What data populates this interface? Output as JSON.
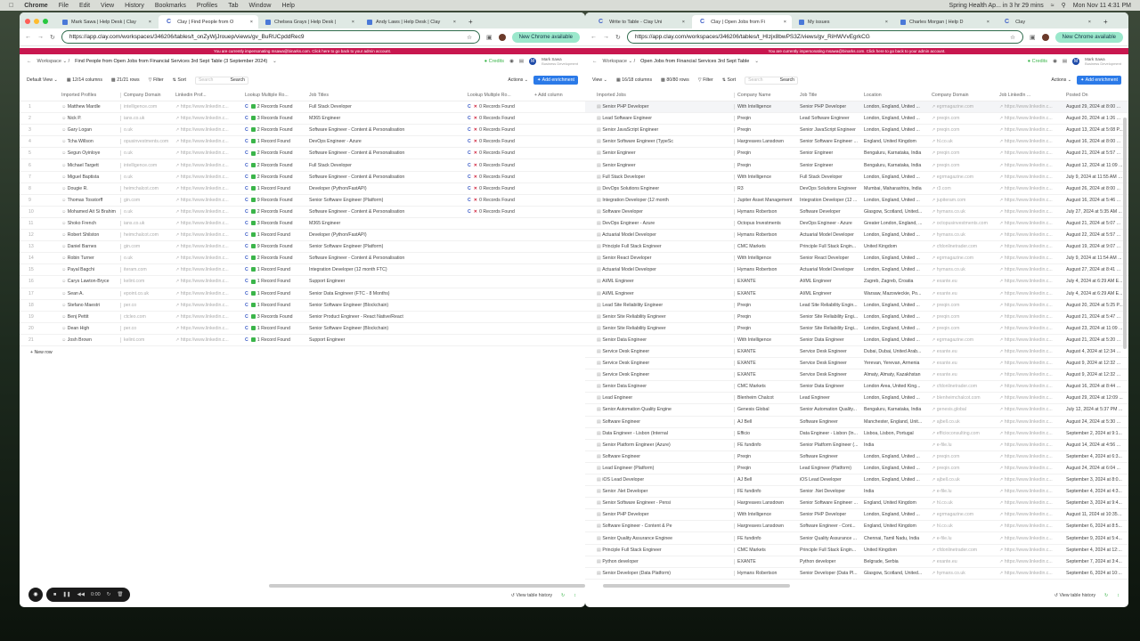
{
  "menubar": {
    "app": "Chrome",
    "items": [
      "File",
      "Edit",
      "View",
      "History",
      "Bookmarks",
      "Profiles",
      "Tab",
      "Window",
      "Help"
    ],
    "event": "Spring Health Ap... in 3 hr 29 mins",
    "clock": "Mon Nov 11 4:31 PM"
  },
  "common": {
    "banner": "You are currently impersonating msawa@binarks.com. Click here to go back to your admin account.",
    "workspace": "Workspace",
    "credits": "Credits",
    "user_name": "Mark Sawa",
    "user_role": "Business Development",
    "avatar": "M",
    "new_chrome": "New Chrome available",
    "search_placeholder": "Search",
    "search_btn": "Search",
    "filter": "Filter",
    "sort": "Sort",
    "actions": "Actions",
    "add_enrichment": "Add enrichment",
    "view_history": "View table history",
    "new_row": "+ New row",
    "rec_time": "0:00"
  },
  "left": {
    "tabs": [
      "Mark Sawa | Help Desk | Clay",
      "Clay | Find People from O",
      "Chelsea Grays | Help Desk |",
      "Andy Laws | Help Desk | Clay"
    ],
    "url": "https://app.clay.com/workspaces/346206/tables/t_onZyWjJrouep/views/gv_BuRUCpddRec9",
    "table_title": "Find People from Open Jobs from Financial Services 3rd Sept Table (3 September 2024)",
    "view": "Default View",
    "columns": "12/14 columns",
    "rows_count": "21/21 rows",
    "headers": [
      "Imported Profiles",
      "Company Domain",
      "Linkedin Prof...",
      "Lookup Multiple Ro...",
      "Job Titles",
      "Lookup Multiple Ro...",
      "+ Add column"
    ],
    "rows": [
      [
        "Matthew Mardle",
        "intelligence.com",
        "https://www.linkedin.c...",
        "2 Records Found",
        "Full Stack Developer",
        "0 Records Found"
      ],
      [
        "Nick P.",
        "ians.co.uk",
        "https://www.linkedin.c...",
        "3 Records Found",
        "M365 Engineer",
        "0 Records Found"
      ],
      [
        "Gary Logan",
        "o.uk",
        "https://www.linkedin.c...",
        "2 Records Found",
        "Software Engineer - Content & Personalisation",
        "0 Records Found"
      ],
      [
        "Tcha Willson",
        "opusinvestments.com",
        "https://www.linkedin.c...",
        "1 Record Found",
        "DevOps Engineer - Azure",
        "0 Records Found"
      ],
      [
        "Segun Oyinloye",
        "o.uk",
        "https://www.linkedin.c...",
        "2 Records Found",
        "Software Engineer - Content & Personalisation",
        "0 Records Found"
      ],
      [
        "Michael Targett",
        "intelligence.com",
        "https://www.linkedin.c...",
        "2 Records Found",
        "Full Stack Developer",
        "0 Records Found"
      ],
      [
        "Miguel Baptista",
        "o.uk",
        "https://www.linkedin.c...",
        "2 Records Found",
        "Software Engineer - Content & Personalisation",
        "0 Records Found"
      ],
      [
        "Dougie R.",
        "heimchalcot.com",
        "https://www.linkedin.c...",
        "1 Record Found",
        "Developer (Python/FastAPI)",
        "0 Records Found"
      ],
      [
        "Thomas Tosstorff",
        "gin.com",
        "https://www.linkedin.c...",
        "9 Records Found",
        "Senior Software Engineer (Platform)",
        "0 Records Found"
      ],
      [
        "Mohamed Ait Si Brahim",
        "o.uk",
        "https://www.linkedin.c...",
        "2 Records Found",
        "Software Engineer - Content & Personalisation",
        "0 Records Found"
      ],
      [
        "Shoko French",
        "ians.co.uk",
        "https://www.linkedin.c...",
        "3 Records Found",
        "M365 Engineer",
        ""
      ],
      [
        "Robert Shilston",
        "heimchalcot.com",
        "https://www.linkedin.c...",
        "1 Record Found",
        "Developer (Python/FastAPI)",
        ""
      ],
      [
        "Daniel Barnes",
        "gin.com",
        "https://www.linkedin.c...",
        "9 Records Found",
        "Senior Software Engineer (Platform)",
        ""
      ],
      [
        "Robin Turner",
        "o.uk",
        "https://www.linkedin.c...",
        "2 Records Found",
        "Software Engineer - Content & Personalisation",
        ""
      ],
      [
        "Payal Bagchi",
        "iteram.com",
        "https://www.linkedin.c...",
        "1 Record Found",
        "Integration Developer (12 month FTC)",
        ""
      ],
      [
        "Carys Lawton-Bryce",
        "kelint.com",
        "https://www.linkedin.c...",
        "1 Record Found",
        "Support Engineer",
        ""
      ],
      [
        "Sean A.",
        "epoint.co.uk",
        "https://www.linkedin.c...",
        "1 Record Found",
        "Senior Data Engineer (FTC - 8 Months)",
        ""
      ],
      [
        "Stefano Maestri",
        "per.co",
        "https://www.linkedin.c...",
        "1 Record Found",
        "Senior Software Engineer (Blockchain)",
        ""
      ],
      [
        "Benj Pettit",
        "ctcleo.com",
        "https://www.linkedin.c...",
        "3 Records Found",
        "Senior Product Engineer - React Native/React",
        ""
      ],
      [
        "Dean High",
        "per.co",
        "https://www.linkedin.c...",
        "1 Record Found",
        "Senior Software Engineer (Blockchain)",
        ""
      ],
      [
        "Josh Brown",
        "kelint.com",
        "https://www.linkedin.c...",
        "1 Record Found",
        "Support Engineer",
        ""
      ]
    ]
  },
  "right": {
    "tabs": [
      "Write to Table - Clay Uni",
      "Clay | Open Jobs from Fi",
      "My issues",
      "Charles Morgan | Help D",
      "Clay"
    ],
    "url": "https://app.clay.com/workspaces/346206/tables/t_HIzjx8bwPS3Z/views/gv_RiHWVvEgrkCG",
    "table_title": "Open Jobs from Financial Services 3rd Sept Table",
    "view": "View",
    "columns": "16/18 columns",
    "rows_count": "80/80 rows",
    "headers": [
      "Imported Jobs",
      "Company Name",
      "Job Title",
      "Location",
      "Company Domain",
      "Job LinkedIn ...",
      "Posted On"
    ],
    "rows": [
      [
        "Senior PHP Developer",
        "With Intelligence",
        "Senior PHP Developer",
        "London, England, United ...",
        "egrmagazine.com",
        "August 29, 2024 at 8:00 AM"
      ],
      [
        "Lead Software Engineer",
        "Preqin",
        "Lead Software Engineer",
        "London, England, United ...",
        "preqin.com",
        "August 20, 2024 at 1:26 A..."
      ],
      [
        "Senior JavaScript Engineer",
        "Preqin",
        "Senior JavaScript Engineer",
        "London, England, United ...",
        "preqin.com",
        "August 13, 2024 at 5:08 P..."
      ],
      [
        "Senior Software Engineer (TypeSc",
        "Hargreaves Lansdown",
        "Senior Software Engineer ...",
        "England, United Kingdom",
        "hl.co.uk",
        "August 16, 2024 at 8:00 A..."
      ],
      [
        "Senior Engineer",
        "Preqin",
        "Senior Engineer",
        "Bengaluru, Karnataka, India",
        "preqin.com",
        "August 21, 2024 at 5:57 A..."
      ],
      [
        "Senior Engineer",
        "Preqin",
        "Senior Engineer",
        "Bengaluru, Karnataka, India",
        "preqin.com",
        "August 12, 2024 at 11:09 ..."
      ],
      [
        "Full Stack Developer",
        "With Intelligence",
        "Full Stack Developer",
        "London, England, United ...",
        "egrmagazine.com",
        "July 9, 2024 at 11:55 AM E..."
      ],
      [
        "DevOps Solutions Engineer",
        "R3",
        "DevOps Solutions Engineer",
        "Mumbai, Maharashtra, India",
        "r3.com",
        "August 26, 2024 at 8:00 ..."
      ],
      [
        "Integration Developer (12 month",
        "Jupiter Asset Management",
        "Integration Developer (12 ...",
        "London, England, United ...",
        "jupiteram.com",
        "August 16, 2024 at 5:46 A..."
      ],
      [
        "Software Developer",
        "Hymans Robertson",
        "Software Developer",
        "Glasgow, Scotland, United...",
        "hymans.co.uk",
        "July 27, 2024 at 5:35 AM ..."
      ],
      [
        "DevOps Engineer - Azure",
        "Octopus Investments",
        "DevOps Engineer - Azure",
        "Greater London, England, ...",
        "octopusinvestments.com",
        "August 21, 2024 at 5:07 A..."
      ],
      [
        "Actuarial Model Developer",
        "Hymans Robertson",
        "Actuarial Model Developer",
        "London, England, United ...",
        "hymans.co.uk",
        "August 22, 2024 at 5:57 A..."
      ],
      [
        "Principle Full Stack Engineer",
        "CMC Markets",
        "Principle Full Stack Engin...",
        "United Kingdom",
        "cfdonlinetrader.com",
        "August 19, 2024 at 9:07 A..."
      ],
      [
        "Senior React Developer",
        "With Intelligence",
        "Senior React Developer",
        "London, England, United ...",
        "egrmagazine.com",
        "July 9, 2024 at 11:54 AM ..."
      ],
      [
        "Actuarial Model Developer",
        "Hymans Robertson",
        "Actuarial Model Developer",
        "London, England, United ...",
        "hymans.co.uk",
        "August 27, 2024 at 8:41 A..."
      ],
      [
        "AI/ML Engineer",
        "EXANTE",
        "AI/ML Engineer",
        "Zagreb, Zagreb, Croatia",
        "exante.eu",
        "July 4, 2024 at 6:29 AM E..."
      ],
      [
        "AI/ML Engineer",
        "EXANTE",
        "AI/ML Engineer",
        "Warsaw, Mazowieckie, Po...",
        "exante.eu",
        "July 4, 2024 at 6:29 AM E..."
      ],
      [
        "Lead Site Reliability Engineer",
        "Preqin",
        "Lead Site Reliability Engin...",
        "London, England, United ...",
        "preqin.com",
        "August 20, 2024 at 5:25 P..."
      ],
      [
        "Senior Site Reliability Engineer",
        "Preqin",
        "Senior Site Reliability Engi...",
        "London, England, United ...",
        "preqin.com",
        "August 21, 2024 at 5:47 A..."
      ],
      [
        "Senior Site Reliability Engineer",
        "Preqin",
        "Senior Site Reliability Engi...",
        "London, England, United ...",
        "preqin.com",
        "August 23, 2024 at 11:09 ..."
      ],
      [
        "Senior Data Engineer",
        "With Intelligence",
        "Senior Data Engineer",
        "London, England, United ...",
        "egrmagazine.com",
        "August 21, 2024 at 5:20 A..."
      ],
      [
        "Service Desk Engineer",
        "EXANTE",
        "Service Desk Engineer",
        "Dubai, Dubai, United Arab...",
        "exante.eu",
        "August 4, 2024 at 12:34 A..."
      ],
      [
        "Service Desk Engineer",
        "EXANTE",
        "Service Desk Engineer",
        "Yerevan, Yerevan, Armenia",
        "exante.eu",
        "August 9, 2024 at 12:32 A..."
      ],
      [
        "Service Desk Engineer",
        "EXANTE",
        "Service Desk Engineer",
        "Almaty, Almaty, Kazakhstan",
        "exante.eu",
        "August 9, 2024 at 12:32 A..."
      ],
      [
        "Senior Data Engineer",
        "CMC Markets",
        "Senior Data Engineer",
        "London Area, United King...",
        "cfdonlinetrader.com",
        "August 16, 2024 at 8:44 A..."
      ],
      [
        "Lead Engineer",
        "Blenheim Chalcot",
        "Lead Engineer",
        "London, England, United ...",
        "blenheimchalcot.com",
        "August 29, 2024 at 12:09 ..."
      ],
      [
        "Senior Automation Quality Engine",
        "Genesis Global",
        "Senior Automation Quality...",
        "Bengaluru, Karnataka, India",
        "genesis.global",
        "July 12, 2024 at 5:37 PM ..."
      ],
      [
        "Software Engineer",
        "AJ Bell",
        "Software Engineer",
        "Manchester, England, Unit...",
        "ajbell.co.uk",
        "August 24, 2024 at 5:30 A..."
      ],
      [
        "Data Engineer - Lisbon (Internal",
        "Efficio",
        "Data Engineer - Lisbon (In...",
        "Lisboa, Lisbon, Portugal",
        "efficioconsulting.com",
        "September 2, 2024 at 9:1..."
      ],
      [
        "Senior Platform Engineer (Azure)",
        "FE fundinfo",
        "Senior Platform Engineer (...",
        "India",
        "e-file.lu",
        "August 14, 2024 at 4:56 A..."
      ],
      [
        "Software Engineer",
        "Preqin",
        "Software Engineer",
        "London, England, United ...",
        "preqin.com",
        "September 4, 2024 at 6:3..."
      ],
      [
        "Lead Engineer (Platform)",
        "Preqin",
        "Lead Engineer (Platform)",
        "London, England, United ...",
        "preqin.com",
        "August 24, 2024 at 6:04 ..."
      ],
      [
        "iOS Lead Developer",
        "AJ Bell",
        "iOS Lead Developer",
        "London, England, United ...",
        "ajbell.co.uk",
        "September 3, 2024 at 8:0..."
      ],
      [
        "Senior .Net Developer",
        "FE fundinfo",
        "Senior .Net Developer",
        "India",
        "e-file.lu",
        "September 4, 2024 at 4:3..."
      ],
      [
        "Senior Software Engineer - Pensi",
        "Hargreaves Lansdown",
        "Senior Software Engineer ...",
        "England, United Kingdom",
        "hl.co.uk",
        "September 3, 2024 at 9:4..."
      ],
      [
        "Senior PHP Developer",
        "With Intelligence",
        "Senior PHP Developer",
        "London, England, United ...",
        "egrmagazine.com",
        "August 11, 2024 at 10:35 P..."
      ],
      [
        "Software Engineer - Content & Pe",
        "Hargreaves Lansdown",
        "Software Engineer - Cont...",
        "England, United Kingdom",
        "hl.co.uk",
        "September 6, 2024 at 8:5..."
      ],
      [
        "Senior Quality Assurance Enginee",
        "FE fundinfo",
        "Senior Quality Assurance ...",
        "Chennai, Tamil Nadu, India",
        "e-file.lu",
        "September 9, 2024 at 5:4..."
      ],
      [
        "Principle Full Stack Engineer",
        "CMC Markets",
        "Principle Full Stack Engin...",
        "United Kingdom",
        "cfdonlinetrader.com",
        "September 4, 2024 at 12:..."
      ],
      [
        "Python developer",
        "EXANTE",
        "Python developer",
        "Belgrade, Serbia",
        "exante.eu",
        "September 7, 2024 at 3:4..."
      ],
      [
        "Senior Developer (Data Platform)",
        "Hymans Robertson",
        "Senior Developer (Data Pl...",
        "Glasgow, Scotland, United...",
        "hymans.co.uk",
        "September 6, 2024 at 10:..."
      ]
    ],
    "linkedin": "https://www.linkedin.c..."
  },
  "colors": {
    "banner": "#c8174f",
    "accent": "#2b7ae8",
    "success": "#3bb54a",
    "error": "#d0213b"
  }
}
